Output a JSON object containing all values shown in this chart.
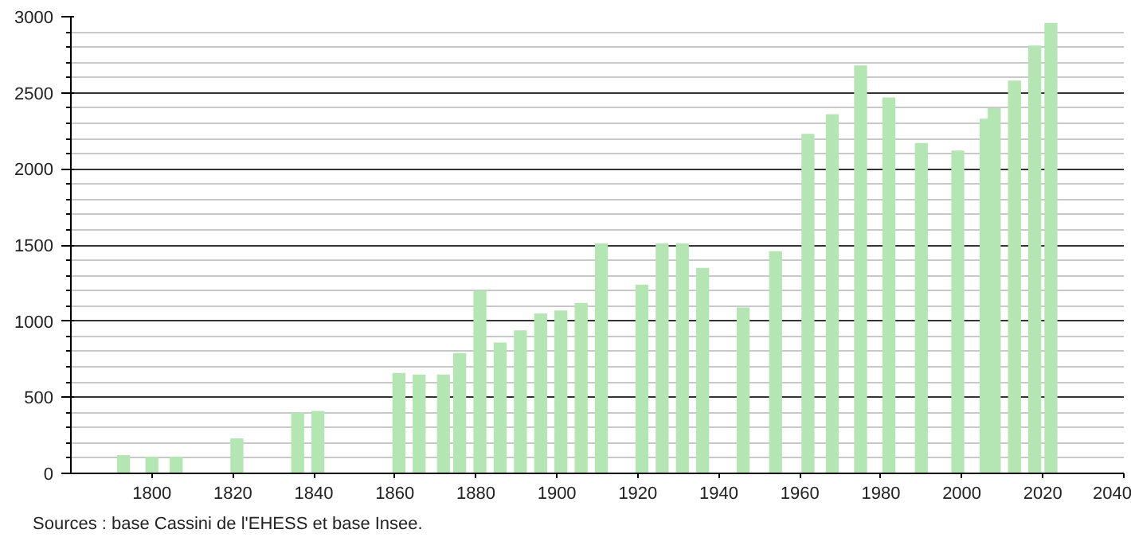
{
  "chart_data": {
    "type": "bar",
    "x": [
      1793,
      1800,
      1806,
      1821,
      1836,
      1841,
      1861,
      1866,
      1872,
      1876,
      1881,
      1886,
      1891,
      1896,
      1901,
      1906,
      1911,
      1921,
      1926,
      1931,
      1936,
      1946,
      1954,
      1962,
      1968,
      1975,
      1982,
      1990,
      1999,
      2006,
      2008,
      2013,
      2018,
      2022
    ],
    "values": [
      120,
      110,
      110,
      230,
      400,
      410,
      660,
      650,
      650,
      790,
      1200,
      860,
      940,
      1050,
      1070,
      1120,
      1510,
      1240,
      1510,
      1510,
      1350,
      1090,
      1460,
      2230,
      2360,
      2680,
      2470,
      2170,
      2120,
      2330,
      2400,
      2580,
      2810,
      2960
    ],
    "color": "#b3e6b3",
    "xlim": [
      1780,
      2040
    ],
    "xticks": [
      1800,
      1820,
      1840,
      1860,
      1880,
      1900,
      1920,
      1940,
      1960,
      1980,
      2000,
      2020,
      2040
    ],
    "ylim": [
      0,
      3000
    ],
    "yticks": [
      0,
      500,
      1000,
      1500,
      2000,
      2500,
      3000
    ],
    "grid": "y",
    "annotations": [
      "Sources : base Cassini de l'EHESS et base Insee."
    ]
  }
}
